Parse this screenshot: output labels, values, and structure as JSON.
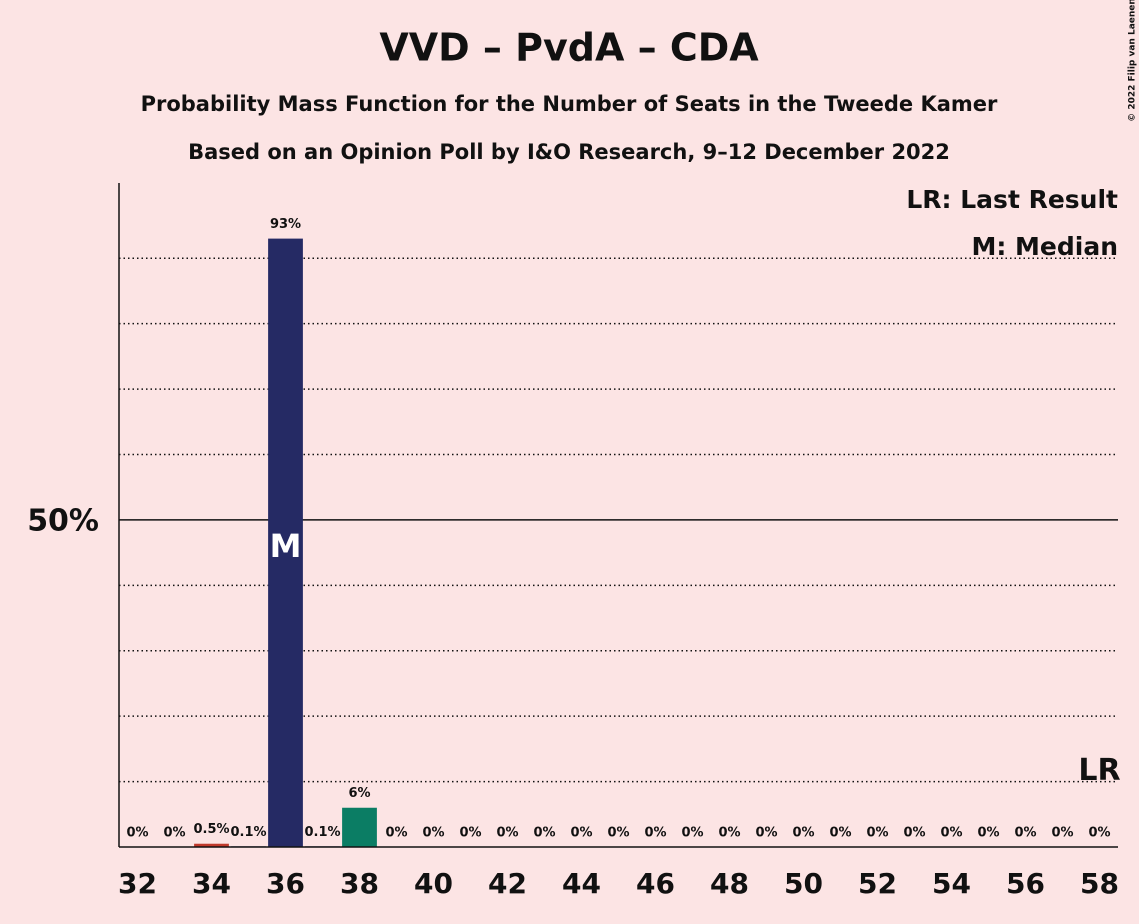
{
  "chart_data": {
    "type": "bar",
    "title": "VVD – PvdA – CDA",
    "subtitle": "Probability Mass Function for the Number of Seats in the Tweede Kamer",
    "subtitle2": "Based on an Opinion Poll by I&O Research, 9–12 December 2022",
    "copyright": "© 2022 Filip van Laenen",
    "categories": [
      32,
      null,
      34,
      null,
      36,
      null,
      38,
      null,
      40,
      null,
      42,
      null,
      44,
      null,
      46,
      null,
      48,
      null,
      50,
      null,
      52,
      null,
      54,
      null,
      56,
      null,
      58
    ],
    "values": [
      0,
      0,
      0.5,
      0.1,
      93,
      0.1,
      6,
      0,
      0,
      0,
      0,
      0,
      0,
      0,
      0,
      0,
      0,
      0,
      0,
      0,
      0,
      0,
      0,
      0,
      0,
      0,
      0
    ],
    "value_labels": [
      "0%",
      "0%",
      "0.5%",
      "0.1%",
      "93%",
      "0.1%",
      "6%",
      "0%",
      "0%",
      "0%",
      "0%",
      "0%",
      "0%",
      "0%",
      "0%",
      "0%",
      "0%",
      "0%",
      "0%",
      "0%",
      "0%",
      "0%",
      "0%",
      "0%",
      "0%",
      "0%",
      "0%"
    ],
    "bar_colors": [
      "#252a64",
      "#252a64",
      "#c0392b",
      "#252a64",
      "#252a64",
      "#252a64",
      "#0b7d64",
      "#252a64",
      "#252a64",
      "#252a64",
      "#252a64",
      "#252a64",
      "#252a64",
      "#252a64",
      "#252a64",
      "#252a64",
      "#252a64",
      "#252a64",
      "#252a64",
      "#252a64",
      "#252a64",
      "#252a64",
      "#252a64",
      "#252a64",
      "#252a64",
      "#252a64",
      "#252a64"
    ],
    "ylim": [
      0,
      101.5
    ],
    "yticks": [
      {
        "value": 50,
        "label": "50%"
      }
    ],
    "minor_yticks": [
      10,
      20,
      30,
      40,
      60,
      70,
      80,
      90
    ],
    "median_index": 4,
    "median_label": "M",
    "last_result_index": 26,
    "last_result_label": "LR",
    "legend": [
      "LR: Last Result",
      "M: Median"
    ]
  }
}
